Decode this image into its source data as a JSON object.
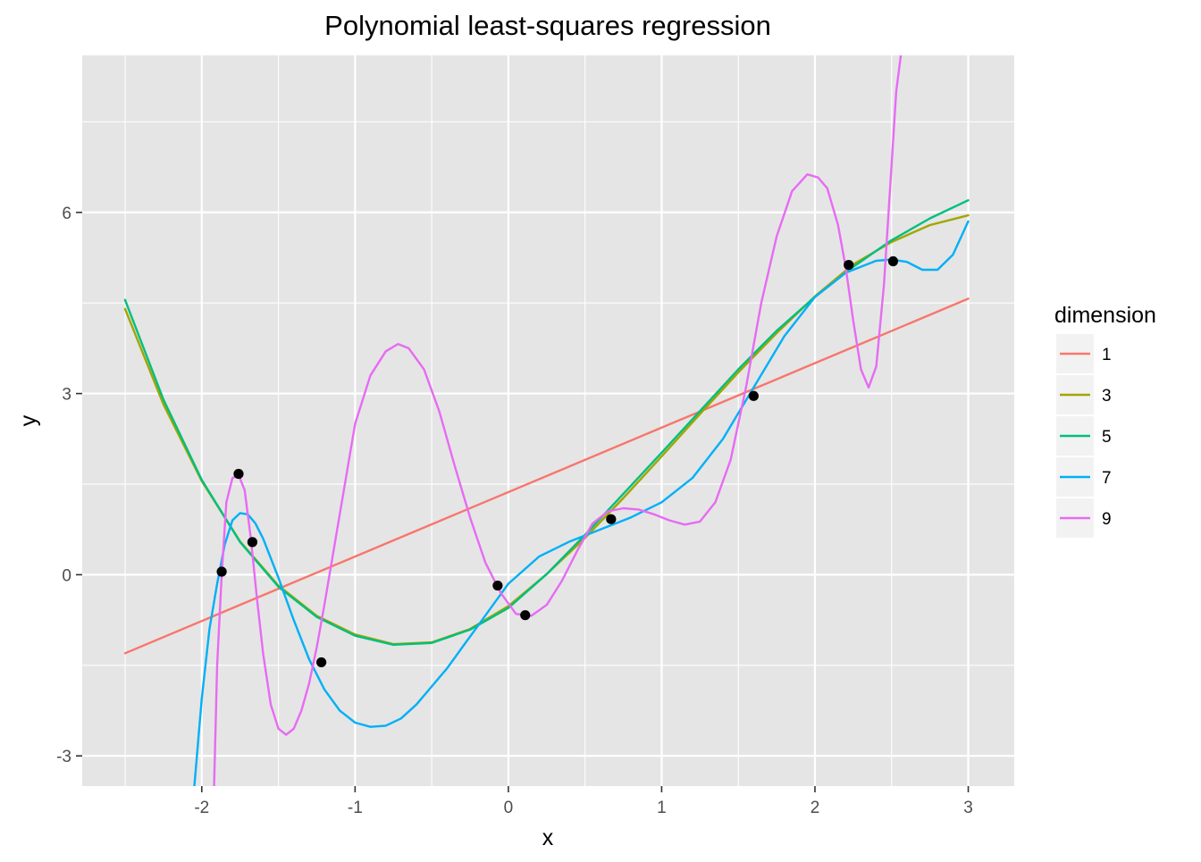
{
  "chart_data": {
    "type": "line",
    "title": "Polynomial least-squares regression",
    "xlabel": "x",
    "ylabel": "y",
    "xlim": [
      -2.78,
      3.3
    ],
    "ylim": [
      -3.5,
      8.6
    ],
    "x_ticks": [
      -2,
      -1,
      0,
      1,
      2,
      3
    ],
    "x_tick_labels": [
      "-2",
      "-1",
      "0",
      "1",
      "2",
      "3"
    ],
    "y_ticks": [
      -3,
      0,
      3,
      6
    ],
    "y_tick_labels": [
      "-3",
      "0",
      "3",
      "6"
    ],
    "grid": true,
    "legend": {
      "title": "dimension",
      "placement": "right",
      "entries": [
        "1",
        "3",
        "5",
        "7",
        "9"
      ]
    },
    "colors": {
      "panel_background": "#e5e5e5",
      "grid": "#ffffff",
      "point": "#000000"
    },
    "points": {
      "x": [
        -1.87,
        -1.76,
        -1.67,
        -1.22,
        -0.07,
        0.11,
        0.67,
        1.6,
        2.22,
        2.51
      ],
      "y": [
        0.05,
        1.67,
        0.54,
        -1.45,
        -0.18,
        -0.67,
        0.92,
        2.96,
        5.13,
        5.19
      ]
    },
    "series": [
      {
        "name": "1",
        "color": "#f8766d",
        "x": [
          -2.5,
          3.0
        ],
        "y": [
          -1.3,
          4.57
        ]
      },
      {
        "name": "3",
        "color": "#a3a500",
        "x": [
          -2.5,
          -2.25,
          -2.0,
          -1.75,
          -1.5,
          -1.25,
          -1.0,
          -0.75,
          -0.5,
          -0.25,
          0.0,
          0.25,
          0.5,
          0.75,
          1.0,
          1.25,
          1.5,
          1.75,
          2.0,
          2.25,
          2.5,
          2.75,
          3.0
        ],
        "y": [
          4.4,
          2.82,
          1.55,
          0.55,
          -0.18,
          -0.68,
          -0.99,
          -1.15,
          -1.12,
          -0.9,
          -0.52,
          0.01,
          0.61,
          1.27,
          1.96,
          2.66,
          3.35,
          4.0,
          4.61,
          5.14,
          5.51,
          5.79,
          5.95
        ]
      },
      {
        "name": "5",
        "color": "#00bf7d",
        "x": [
          -2.5,
          -2.25,
          -2.0,
          -1.75,
          -1.5,
          -1.25,
          -1.0,
          -0.75,
          -0.5,
          -0.25,
          0.0,
          0.25,
          0.5,
          0.75,
          1.0,
          1.25,
          1.5,
          1.75,
          2.0,
          2.25,
          2.5,
          2.75,
          3.0
        ],
        "y": [
          4.55,
          2.9,
          1.57,
          0.54,
          -0.2,
          -0.7,
          -1.01,
          -1.16,
          -1.13,
          -0.91,
          -0.55,
          0.01,
          0.66,
          1.34,
          2.02,
          2.71,
          3.4,
          4.04,
          4.6,
          5.1,
          5.54,
          5.9,
          6.2
        ]
      },
      {
        "name": "7",
        "color": "#00b0f6",
        "x": [
          -2.05,
          -2.0,
          -1.95,
          -1.9,
          -1.85,
          -1.8,
          -1.75,
          -1.7,
          -1.65,
          -1.6,
          -1.5,
          -1.4,
          -1.3,
          -1.2,
          -1.1,
          -1.0,
          -0.9,
          -0.8,
          -0.7,
          -0.6,
          -0.5,
          -0.4,
          -0.3,
          -0.2,
          -0.1,
          0.0,
          0.2,
          0.4,
          0.6,
          0.8,
          1.0,
          1.2,
          1.4,
          1.6,
          1.8,
          2.0,
          2.2,
          2.4,
          2.5,
          2.6,
          2.7,
          2.8,
          2.9,
          3.0
        ],
        "y": [
          -3.55,
          -2.05,
          -0.9,
          -0.15,
          0.5,
          0.9,
          1.02,
          1.0,
          0.85,
          0.6,
          -0.05,
          -0.75,
          -1.4,
          -1.9,
          -2.25,
          -2.45,
          -2.52,
          -2.5,
          -2.38,
          -2.15,
          -1.85,
          -1.55,
          -1.2,
          -0.85,
          -0.5,
          -0.15,
          0.3,
          0.55,
          0.75,
          0.95,
          1.2,
          1.6,
          2.25,
          3.1,
          3.95,
          4.6,
          5.0,
          5.2,
          5.22,
          5.18,
          5.05,
          5.05,
          5.3,
          5.85
        ]
      },
      {
        "name": "9",
        "color": "#e76bf3",
        "x": [
          -1.92,
          -1.9,
          -1.87,
          -1.84,
          -1.8,
          -1.76,
          -1.72,
          -1.68,
          -1.64,
          -1.6,
          -1.55,
          -1.5,
          -1.45,
          -1.4,
          -1.35,
          -1.3,
          -1.25,
          -1.2,
          -1.1,
          -1.0,
          -0.9,
          -0.8,
          -0.72,
          -0.65,
          -0.55,
          -0.45,
          -0.35,
          -0.25,
          -0.15,
          -0.05,
          0.05,
          0.15,
          0.25,
          0.35,
          0.45,
          0.55,
          0.65,
          0.75,
          0.85,
          0.95,
          1.05,
          1.15,
          1.25,
          1.35,
          1.45,
          1.55,
          1.65,
          1.75,
          1.85,
          1.95,
          2.02,
          2.08,
          2.15,
          2.2,
          2.25,
          2.3,
          2.35,
          2.4,
          2.45,
          2.5,
          2.53,
          2.56
        ],
        "y": [
          -3.55,
          -1.5,
          0.0,
          1.2,
          1.6,
          1.65,
          1.4,
          0.6,
          -0.4,
          -1.3,
          -2.15,
          -2.55,
          -2.65,
          -2.55,
          -2.25,
          -1.8,
          -1.2,
          -0.5,
          1.0,
          2.5,
          3.3,
          3.7,
          3.82,
          3.75,
          3.4,
          2.7,
          1.8,
          0.95,
          0.2,
          -0.3,
          -0.65,
          -0.68,
          -0.5,
          -0.1,
          0.4,
          0.85,
          1.05,
          1.1,
          1.08,
          1.0,
          0.9,
          0.83,
          0.88,
          1.2,
          1.9,
          3.1,
          4.5,
          5.6,
          6.35,
          6.63,
          6.58,
          6.4,
          5.8,
          5.1,
          4.2,
          3.4,
          3.1,
          3.45,
          4.8,
          6.8,
          8.0,
          8.6
        ]
      }
    ]
  }
}
